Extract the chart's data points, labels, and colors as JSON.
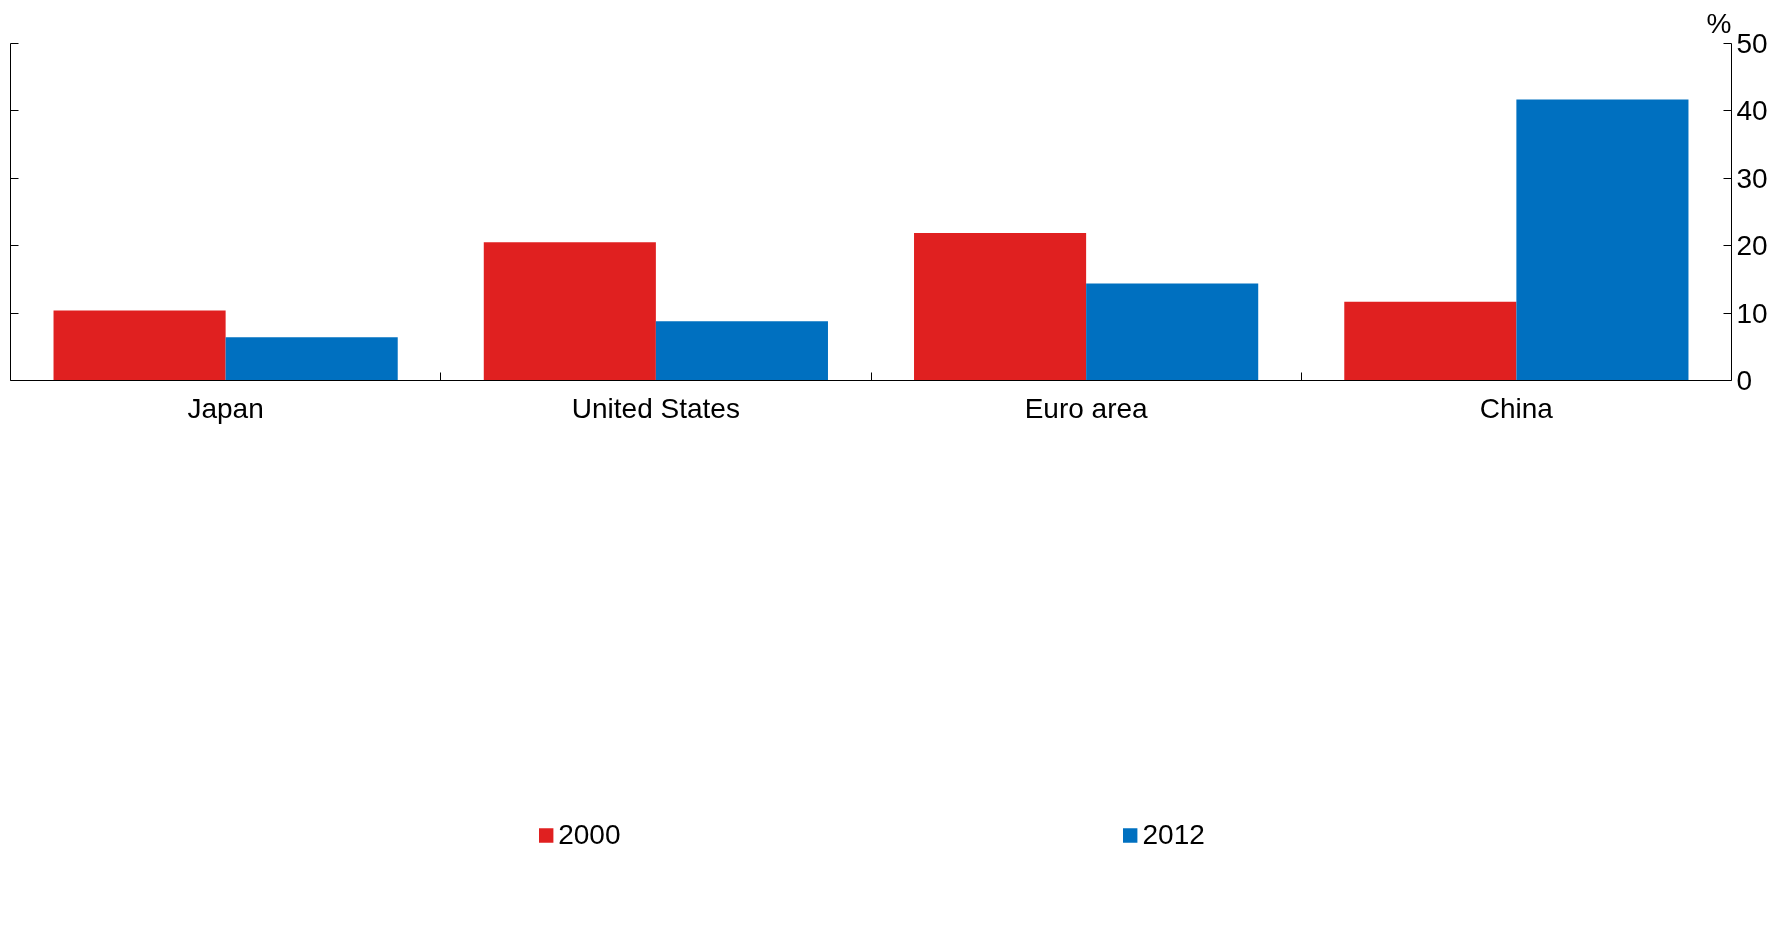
{
  "chart_data": {
    "type": "bar",
    "ylabel": "%",
    "categories": [
      "Japan",
      "United States",
      "Euro area",
      "China"
    ],
    "series": [
      {
        "name": "2000",
        "color": "#e02020",
        "values": [
          10.4,
          20.5,
          21.9,
          11.7
        ]
      },
      {
        "name": "2012",
        "color": "#0070c0",
        "values": [
          6.4,
          8.8,
          14.4,
          41.7
        ]
      }
    ],
    "ylim": [
      0,
      50
    ],
    "yticks": [
      0,
      10,
      20,
      30,
      40,
      50
    ],
    "grid": false,
    "legend": "bottom"
  }
}
